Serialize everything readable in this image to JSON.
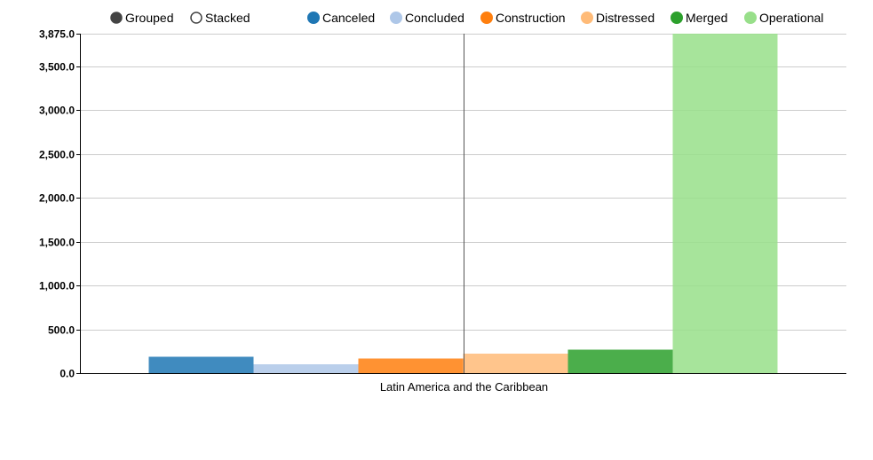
{
  "controls": {
    "grouped_label": "Grouped",
    "stacked_label": "Stacked",
    "selected": "Grouped"
  },
  "chart_data": {
    "type": "bar",
    "categories": [
      "Latin America and the Caribbean"
    ],
    "series": [
      {
        "name": "Canceled",
        "color": "#1f77b4",
        "values": [
          185
        ]
      },
      {
        "name": "Concluded",
        "color": "#aec7e8",
        "values": [
          100
        ]
      },
      {
        "name": "Construction",
        "color": "#ff7f0e",
        "values": [
          165
        ]
      },
      {
        "name": "Distressed",
        "color": "#ffbb78",
        "values": [
          225
        ]
      },
      {
        "name": "Merged",
        "color": "#2ca02c",
        "values": [
          270
        ]
      },
      {
        "name": "Operational",
        "color": "#98df8a",
        "values": [
          3875
        ]
      }
    ],
    "ylim": [
      0,
      3875
    ],
    "yticks": [
      {
        "value": 0,
        "label": "0.0",
        "bold": true
      },
      {
        "value": 500,
        "label": "500.0"
      },
      {
        "value": 1000,
        "label": "1,000.0"
      },
      {
        "value": 1500,
        "label": "1,500.0"
      },
      {
        "value": 2000,
        "label": "2,000.0"
      },
      {
        "value": 2500,
        "label": "2,500.0"
      },
      {
        "value": 3000,
        "label": "3,000.0"
      },
      {
        "value": 3500,
        "label": "3,500.0"
      },
      {
        "value": 3875,
        "label": "3,875.0",
        "bold": true
      }
    ],
    "grid": true,
    "legend_position": "top-right",
    "xlabel": "",
    "ylabel": ""
  }
}
